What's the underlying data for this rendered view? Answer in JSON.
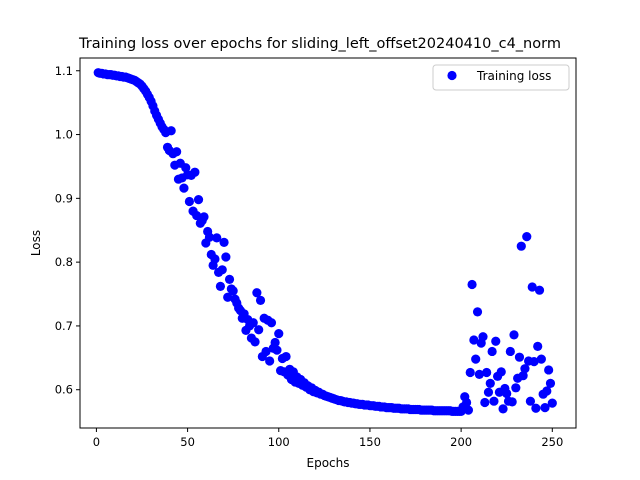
{
  "chart_data": {
    "type": "scatter",
    "title": "Training loss over epochs for sliding_left_offset20240410_c4_norm",
    "xlabel": "Epochs",
    "ylabel": "Loss",
    "xlim": [
      -9,
      263
    ],
    "ylim": [
      0.54,
      1.12
    ],
    "xticks": [
      0,
      50,
      100,
      150,
      200,
      250
    ],
    "yticks": [
      0.6,
      0.7,
      0.8,
      0.9,
      1.0,
      1.1
    ],
    "xtick_labels": [
      "0",
      "50",
      "100",
      "150",
      "200",
      "250"
    ],
    "ytick_labels": [
      "0.6",
      "0.7",
      "0.8",
      "0.9",
      "1.0",
      "1.1"
    ],
    "grid": false,
    "legend": {
      "position": "top-right"
    },
    "series": [
      {
        "name": "Training loss",
        "color": "#0000ff",
        "marker": "circle",
        "points": [
          [
            1,
            1.097
          ],
          [
            2,
            1.096
          ],
          [
            3,
            1.096
          ],
          [
            4,
            1.095
          ],
          [
            5,
            1.095
          ],
          [
            6,
            1.094
          ],
          [
            7,
            1.094
          ],
          [
            8,
            1.094
          ],
          [
            9,
            1.093
          ],
          [
            10,
            1.093
          ],
          [
            11,
            1.092
          ],
          [
            12,
            1.092
          ],
          [
            13,
            1.091
          ],
          [
            14,
            1.091
          ],
          [
            15,
            1.09
          ],
          [
            16,
            1.09
          ],
          [
            17,
            1.089
          ],
          [
            18,
            1.088
          ],
          [
            19,
            1.087
          ],
          [
            20,
            1.086
          ],
          [
            21,
            1.085
          ],
          [
            22,
            1.083
          ],
          [
            23,
            1.081
          ],
          [
            24,
            1.079
          ],
          [
            25,
            1.076
          ],
          [
            26,
            1.072
          ],
          [
            27,
            1.068
          ],
          [
            28,
            1.063
          ],
          [
            29,
            1.058
          ],
          [
            30,
            1.052
          ],
          [
            31,
            1.045
          ],
          [
            32,
            1.037
          ],
          [
            33,
            1.03
          ],
          [
            34,
            1.024
          ],
          [
            35,
            1.018
          ],
          [
            36,
            1.012
          ],
          [
            37,
            1.008
          ],
          [
            38,
            1.003
          ],
          [
            39,
            0.98
          ],
          [
            40,
            0.975
          ],
          [
            41,
            1.006
          ],
          [
            42,
            0.97
          ],
          [
            43,
            0.952
          ],
          [
            44,
            0.973
          ],
          [
            45,
            0.93
          ],
          [
            46,
            0.955
          ],
          [
            47,
            0.932
          ],
          [
            48,
            0.916
          ],
          [
            49,
            0.948
          ],
          [
            50,
            0.937
          ],
          [
            51,
            0.895
          ],
          [
            52,
            0.936
          ],
          [
            53,
            0.88
          ],
          [
            54,
            0.941
          ],
          [
            55,
            0.873
          ],
          [
            56,
            0.898
          ],
          [
            57,
            0.861
          ],
          [
            58,
            0.865
          ],
          [
            59,
            0.871
          ],
          [
            60,
            0.83
          ],
          [
            61,
            0.848
          ],
          [
            62,
            0.839
          ],
          [
            63,
            0.812
          ],
          [
            64,
            0.795
          ],
          [
            65,
            0.805
          ],
          [
            66,
            0.838
          ],
          [
            67,
            0.784
          ],
          [
            68,
            0.762
          ],
          [
            69,
            0.788
          ],
          [
            70,
            0.831
          ],
          [
            71,
            0.808
          ],
          [
            72,
            0.745
          ],
          [
            73,
            0.773
          ],
          [
            74,
            0.758
          ],
          [
            75,
            0.755
          ],
          [
            76,
            0.742
          ],
          [
            77,
            0.736
          ],
          [
            78,
            0.728
          ],
          [
            79,
            0.724
          ],
          [
            80,
            0.712
          ],
          [
            81,
            0.719
          ],
          [
            82,
            0.693
          ],
          [
            83,
            0.71
          ],
          [
            84,
            0.7
          ],
          [
            85,
            0.681
          ],
          [
            86,
            0.705
          ],
          [
            87,
            0.675
          ],
          [
            88,
            0.752
          ],
          [
            89,
            0.694
          ],
          [
            90,
            0.74
          ],
          [
            91,
            0.652
          ],
          [
            92,
            0.712
          ],
          [
            93,
            0.66
          ],
          [
            94,
            0.709
          ],
          [
            95,
            0.645
          ],
          [
            96,
            0.705
          ],
          [
            97,
            0.665
          ],
          [
            98,
            0.674
          ],
          [
            99,
            0.662
          ],
          [
            100,
            0.688
          ],
          [
            101,
            0.63
          ],
          [
            102,
            0.649
          ],
          [
            103,
            0.628
          ],
          [
            104,
            0.652
          ],
          [
            105,
            0.623
          ],
          [
            106,
            0.632
          ],
          [
            107,
            0.616
          ],
          [
            108,
            0.628
          ],
          [
            109,
            0.612
          ],
          [
            110,
            0.62
          ],
          [
            111,
            0.61
          ],
          [
            112,
            0.616
          ],
          [
            113,
            0.607
          ],
          [
            114,
            0.611
          ],
          [
            115,
            0.604
          ],
          [
            116,
            0.606
          ],
          [
            117,
            0.6
          ],
          [
            118,
            0.603
          ],
          [
            119,
            0.597
          ],
          [
            120,
            0.599
          ],
          [
            121,
            0.595
          ],
          [
            122,
            0.596
          ],
          [
            123,
            0.593
          ],
          [
            124,
            0.593
          ],
          [
            125,
            0.591
          ],
          [
            126,
            0.59
          ],
          [
            127,
            0.589
          ],
          [
            128,
            0.588
          ],
          [
            129,
            0.587
          ],
          [
            130,
            0.586
          ],
          [
            131,
            0.585
          ],
          [
            132,
            0.584
          ],
          [
            133,
            0.583
          ],
          [
            134,
            0.583
          ],
          [
            135,
            0.582
          ],
          [
            136,
            0.581
          ],
          [
            137,
            0.581
          ],
          [
            138,
            0.58
          ],
          [
            139,
            0.58
          ],
          [
            140,
            0.579
          ],
          [
            141,
            0.579
          ],
          [
            142,
            0.578
          ],
          [
            143,
            0.578
          ],
          [
            144,
            0.577
          ],
          [
            145,
            0.577
          ],
          [
            146,
            0.577
          ],
          [
            147,
            0.576
          ],
          [
            148,
            0.576
          ],
          [
            149,
            0.576
          ],
          [
            150,
            0.575
          ],
          [
            151,
            0.575
          ],
          [
            152,
            0.575
          ],
          [
            153,
            0.574
          ],
          [
            154,
            0.574
          ],
          [
            155,
            0.574
          ],
          [
            156,
            0.573
          ],
          [
            157,
            0.573
          ],
          [
            158,
            0.573
          ],
          [
            159,
            0.572
          ],
          [
            160,
            0.572
          ],
          [
            161,
            0.572
          ],
          [
            162,
            0.572
          ],
          [
            163,
            0.571
          ],
          [
            164,
            0.571
          ],
          [
            165,
            0.571
          ],
          [
            166,
            0.571
          ],
          [
            167,
            0.57
          ],
          [
            168,
            0.57
          ],
          [
            169,
            0.57
          ],
          [
            170,
            0.57
          ],
          [
            171,
            0.57
          ],
          [
            172,
            0.569
          ],
          [
            173,
            0.569
          ],
          [
            174,
            0.569
          ],
          [
            175,
            0.569
          ],
          [
            176,
            0.569
          ],
          [
            177,
            0.569
          ],
          [
            178,
            0.568
          ],
          [
            179,
            0.568
          ],
          [
            180,
            0.568
          ],
          [
            181,
            0.568
          ],
          [
            182,
            0.568
          ],
          [
            183,
            0.568
          ],
          [
            184,
            0.568
          ],
          [
            185,
            0.567
          ],
          [
            186,
            0.567
          ],
          [
            187,
            0.567
          ],
          [
            188,
            0.567
          ],
          [
            189,
            0.567
          ],
          [
            190,
            0.567
          ],
          [
            191,
            0.567
          ],
          [
            192,
            0.567
          ],
          [
            193,
            0.567
          ],
          [
            194,
            0.567
          ],
          [
            195,
            0.566
          ],
          [
            196,
            0.566
          ],
          [
            197,
            0.566
          ],
          [
            198,
            0.566
          ],
          [
            199,
            0.566
          ],
          [
            200,
            0.566
          ],
          [
            201,
            0.573
          ],
          [
            202,
            0.589
          ],
          [
            203,
            0.58
          ],
          [
            204,
            0.568
          ],
          [
            205,
            0.627
          ],
          [
            206,
            0.765
          ],
          [
            207,
            0.678
          ],
          [
            208,
            0.648
          ],
          [
            209,
            0.722
          ],
          [
            210,
            0.624
          ],
          [
            211,
            0.673
          ],
          [
            212,
            0.683
          ],
          [
            213,
            0.58
          ],
          [
            214,
            0.627
          ],
          [
            215,
            0.596
          ],
          [
            216,
            0.61
          ],
          [
            217,
            0.66
          ],
          [
            218,
            0.582
          ],
          [
            219,
            0.676
          ],
          [
            220,
            0.621
          ],
          [
            221,
            0.596
          ],
          [
            222,
            0.628
          ],
          [
            223,
            0.57
          ],
          [
            224,
            0.602
          ],
          [
            225,
            0.594
          ],
          [
            226,
            0.582
          ],
          [
            227,
            0.66
          ],
          [
            228,
            0.581
          ],
          [
            229,
            0.686
          ],
          [
            230,
            0.603
          ],
          [
            231,
            0.618
          ],
          [
            232,
            0.651
          ],
          [
            233,
            0.825
          ],
          [
            234,
            0.622
          ],
          [
            235,
            0.633
          ],
          [
            236,
            0.84
          ],
          [
            237,
            0.645
          ],
          [
            238,
            0.582
          ],
          [
            239,
            0.761
          ],
          [
            240,
            0.644
          ],
          [
            241,
            0.571
          ],
          [
            242,
            0.668
          ],
          [
            243,
            0.756
          ],
          [
            244,
            0.648
          ],
          [
            245,
            0.593
          ],
          [
            246,
            0.572
          ],
          [
            247,
            0.598
          ],
          [
            248,
            0.631
          ],
          [
            249,
            0.61
          ],
          [
            250,
            0.579
          ]
        ]
      }
    ]
  }
}
